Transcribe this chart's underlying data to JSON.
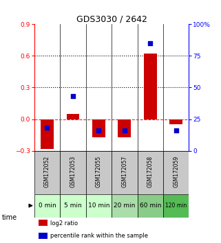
{
  "title": "GDS3030 / 2642",
  "samples": [
    "GSM172052",
    "GSM172053",
    "GSM172055",
    "GSM172057",
    "GSM172058",
    "GSM172059"
  ],
  "time_labels": [
    "0 min",
    "5 min",
    "10 min",
    "20 min",
    "60 min",
    "120 min"
  ],
  "log2_ratio": [
    -0.28,
    0.05,
    -0.17,
    -0.17,
    0.62,
    -0.05
  ],
  "percentile_rank": [
    18,
    43,
    16,
    16,
    85,
    16
  ],
  "left_ylim": [
    -0.3,
    0.9
  ],
  "right_ylim": [
    0,
    100
  ],
  "left_yticks": [
    -0.3,
    0.0,
    0.3,
    0.6,
    0.9
  ],
  "right_yticks": [
    0,
    25,
    50,
    75,
    100
  ],
  "right_yticklabels": [
    "0",
    "25",
    "50",
    "75",
    "100%"
  ],
  "dotted_lines": [
    0.3,
    0.6
  ],
  "dashed_line": 0.0,
  "bar_color": "#cc0000",
  "dot_color": "#0000cc",
  "bar_width": 0.5,
  "dot_size": 22,
  "time_bg_colors": [
    "#ccffcc",
    "#ccffcc",
    "#ccffcc",
    "#aaddaa",
    "#88cc88",
    "#55bb55"
  ],
  "sample_bg_color": "#c8c8c8",
  "legend_items": [
    "log2 ratio",
    "percentile rank within the sample"
  ],
  "legend_colors": [
    "#cc0000",
    "#0000cc"
  ],
  "title_fontsize": 9,
  "tick_fontsize": 6.5,
  "sample_fontsize": 5.5,
  "time_fontsize": 6.5
}
